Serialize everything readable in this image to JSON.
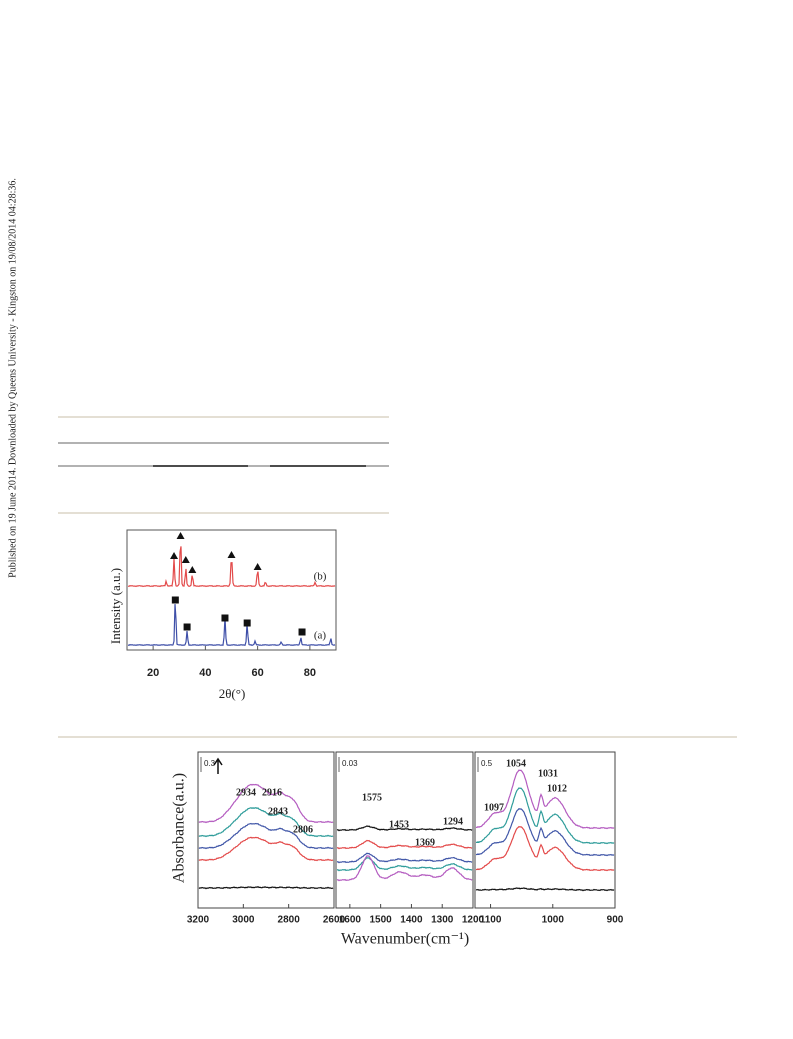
{
  "side_note": "Published on 19 June 2014. Downloaded by Queens University - Kingston on 19/08/2014 04:28:36.",
  "figure_1": {
    "x_label": "2θ(°)",
    "y_label": "Intensity (a.u.)",
    "xlim": [
      10,
      90
    ],
    "xticks": [
      20,
      40,
      60,
      80
    ],
    "trace_labels": [
      "(b)",
      "(a)"
    ]
  },
  "figure_2": {
    "x_label": "Wavenumber(cm⁻¹)",
    "y_label": "Absorbance(a.u.)",
    "panels": [
      {
        "scale": "0.3",
        "xlim": [
          3200,
          2600
        ],
        "xticks": [
          3200,
          3000,
          2800,
          2600
        ],
        "peaks": [
          "2934",
          "2916",
          "2843",
          "2806"
        ]
      },
      {
        "scale": "0.03",
        "xlim": [
          1645,
          1200
        ],
        "xticks": [
          1600,
          1500,
          1400,
          1300,
          1200
        ],
        "peaks": [
          "1575",
          "1453",
          "1369",
          "1294"
        ]
      },
      {
        "scale": "0.5",
        "xlim": [
          1125,
          900
        ],
        "xticks": [
          1100,
          1000,
          900
        ],
        "peaks": [
          "1054",
          "1031",
          "1012",
          "1097"
        ]
      }
    ]
  }
}
